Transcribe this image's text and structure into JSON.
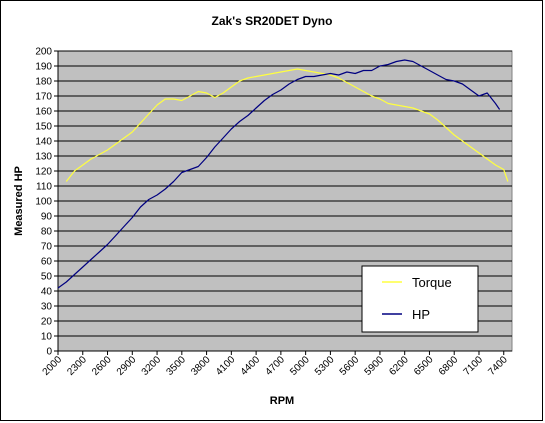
{
  "chart_data": {
    "type": "line",
    "title": "Zak's SR20DET Dyno",
    "xlabel": "RPM",
    "ylabel": "Measured HP",
    "xlim": [
      2000,
      7500
    ],
    "ylim": [
      0,
      200
    ],
    "y_ticks": [
      0,
      10,
      20,
      30,
      40,
      50,
      60,
      70,
      80,
      90,
      100,
      110,
      120,
      130,
      140,
      150,
      160,
      170,
      180,
      190,
      200
    ],
    "x_tick_labels": [
      "2000",
      "2300",
      "2600",
      "2900",
      "3200",
      "3500",
      "3800",
      "4100",
      "4400",
      "4700",
      "5000",
      "5300",
      "5600",
      "5900",
      "6200",
      "6500",
      "6800",
      "7100",
      "7400"
    ],
    "grid": "horizontal",
    "plot_background": "#c0c0c0",
    "legend_position": "lower-right",
    "series": [
      {
        "name": "Torque",
        "color": "#ffff40",
        "points": [
          [
            2100,
            113
          ],
          [
            2200,
            120
          ],
          [
            2300,
            124
          ],
          [
            2400,
            128
          ],
          [
            2500,
            131
          ],
          [
            2600,
            134
          ],
          [
            2700,
            138
          ],
          [
            2800,
            142
          ],
          [
            2900,
            146
          ],
          [
            3000,
            152
          ],
          [
            3100,
            158
          ],
          [
            3200,
            164
          ],
          [
            3300,
            168
          ],
          [
            3400,
            168
          ],
          [
            3500,
            167
          ],
          [
            3600,
            170
          ],
          [
            3700,
            173
          ],
          [
            3800,
            172
          ],
          [
            3900,
            169
          ],
          [
            4000,
            172
          ],
          [
            4100,
            176
          ],
          [
            4200,
            180
          ],
          [
            4300,
            182
          ],
          [
            4400,
            183
          ],
          [
            4500,
            184
          ],
          [
            4600,
            185
          ],
          [
            4700,
            186
          ],
          [
            4800,
            187
          ],
          [
            4900,
            188
          ],
          [
            5000,
            187
          ],
          [
            5100,
            186
          ],
          [
            5200,
            185
          ],
          [
            5300,
            184
          ],
          [
            5400,
            182
          ],
          [
            5500,
            179
          ],
          [
            5600,
            176
          ],
          [
            5700,
            173
          ],
          [
            5800,
            170
          ],
          [
            5900,
            168
          ],
          [
            6000,
            165
          ],
          [
            6100,
            164
          ],
          [
            6200,
            163
          ],
          [
            6300,
            162
          ],
          [
            6400,
            160
          ],
          [
            6500,
            158
          ],
          [
            6600,
            154
          ],
          [
            6700,
            149
          ],
          [
            6800,
            144
          ],
          [
            6900,
            140
          ],
          [
            7000,
            136
          ],
          [
            7100,
            132
          ],
          [
            7200,
            128
          ],
          [
            7300,
            124
          ],
          [
            7400,
            121
          ],
          [
            7450,
            113
          ]
        ]
      },
      {
        "name": "HP",
        "color": "#000080",
        "points": [
          [
            2000,
            42
          ],
          [
            2100,
            46
          ],
          [
            2200,
            51
          ],
          [
            2300,
            56
          ],
          [
            2400,
            61
          ],
          [
            2500,
            66
          ],
          [
            2600,
            71
          ],
          [
            2700,
            77
          ],
          [
            2800,
            83
          ],
          [
            2900,
            89
          ],
          [
            3000,
            96
          ],
          [
            3100,
            101
          ],
          [
            3200,
            104
          ],
          [
            3300,
            108
          ],
          [
            3400,
            113
          ],
          [
            3500,
            119
          ],
          [
            3600,
            121
          ],
          [
            3700,
            123
          ],
          [
            3800,
            129
          ],
          [
            3900,
            136
          ],
          [
            4000,
            142
          ],
          [
            4100,
            148
          ],
          [
            4200,
            153
          ],
          [
            4300,
            157
          ],
          [
            4400,
            162
          ],
          [
            4500,
            167
          ],
          [
            4600,
            171
          ],
          [
            4700,
            174
          ],
          [
            4800,
            178
          ],
          [
            4900,
            181
          ],
          [
            5000,
            183
          ],
          [
            5100,
            183
          ],
          [
            5200,
            184
          ],
          [
            5300,
            185
          ],
          [
            5400,
            184
          ],
          [
            5500,
            186
          ],
          [
            5600,
            185
          ],
          [
            5700,
            187
          ],
          [
            5800,
            187
          ],
          [
            5900,
            190
          ],
          [
            6000,
            191
          ],
          [
            6100,
            193
          ],
          [
            6200,
            194
          ],
          [
            6300,
            193
          ],
          [
            6400,
            190
          ],
          [
            6500,
            187
          ],
          [
            6600,
            184
          ],
          [
            6700,
            181
          ],
          [
            6800,
            180
          ],
          [
            6900,
            178
          ],
          [
            7000,
            174
          ],
          [
            7100,
            170
          ],
          [
            7200,
            172
          ],
          [
            7300,
            165
          ],
          [
            7350,
            161
          ]
        ]
      }
    ]
  }
}
